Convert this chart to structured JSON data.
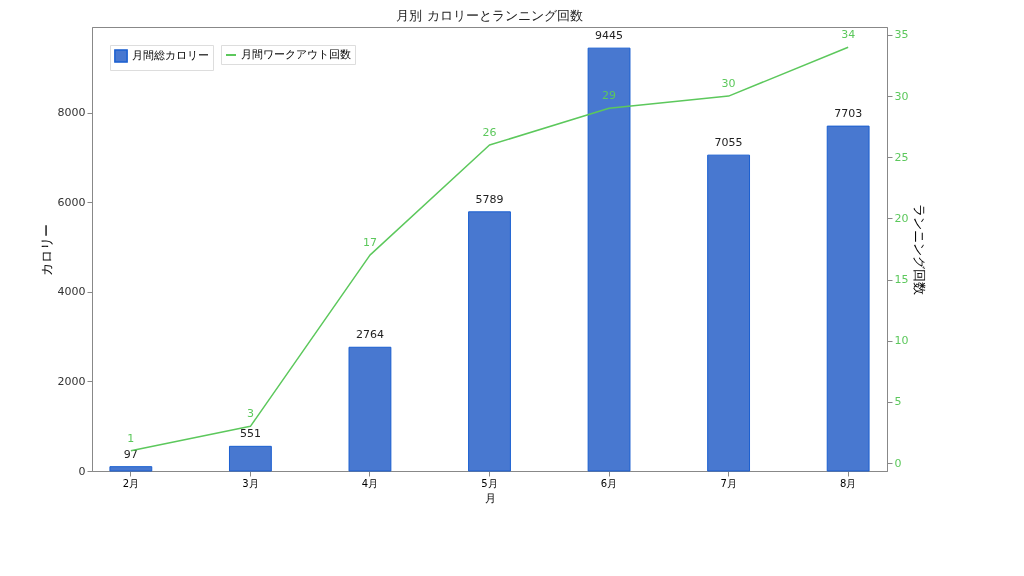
{
  "chart_data": {
    "type": "bar",
    "title": "月別 カロリーとランニング回数",
    "xlabel": "月",
    "ylabel": "カロリー",
    "y2label": "ランニング回数",
    "categories": [
      "2月",
      "3月",
      "4月",
      "5月",
      "6月",
      "7月",
      "8月"
    ],
    "series": [
      {
        "name": "月間総カロリー",
        "color": "#4878d0",
        "values": [
          97,
          551,
          2764,
          5789,
          9445,
          7055,
          7703
        ]
      },
      {
        "name": "月間ワークアウト回数",
        "type": "line",
        "axis": "y2",
        "color": "#5cc85c",
        "values": [
          1,
          3,
          17,
          26,
          29,
          30,
          34
        ]
      }
    ],
    "ylim": [
      0,
      9917
    ],
    "yticks": [
      0,
      2000,
      4000,
      6000,
      8000
    ],
    "y2lim": [
      -0.65,
      35.65
    ],
    "y2ticks": [
      0,
      5,
      10,
      15,
      20,
      25,
      30,
      35
    ],
    "data_labels": true,
    "grid": false,
    "legend": "top left"
  }
}
